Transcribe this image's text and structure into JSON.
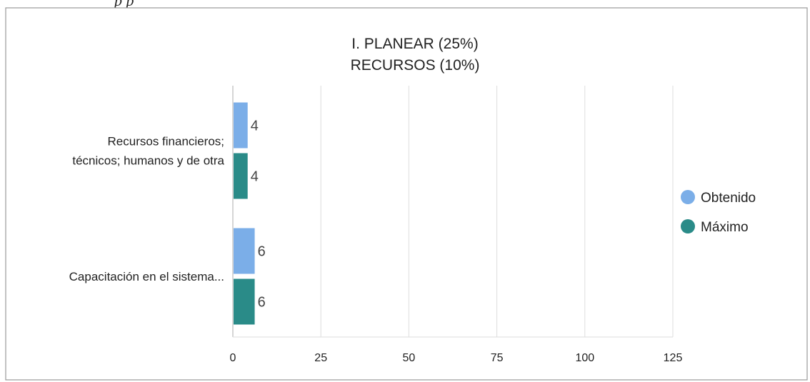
{
  "page": {
    "cropped_caption": "p                    p"
  },
  "chart_data": {
    "type": "bar",
    "orientation": "horizontal",
    "title_lines": [
      "I. PLANEAR (25%)",
      "RECURSOS (10%)"
    ],
    "categories": [
      [
        "Recursos financieros;",
        "técnicos;  humanos y de otra"
      ],
      [
        "Capacitación en el sistema..."
      ]
    ],
    "series": [
      {
        "name": "Obtenido",
        "values": [
          4,
          6
        ],
        "color": "#7baee8"
      },
      {
        "name": "Máximo",
        "values": [
          4,
          6
        ],
        "color": "#2a8b88"
      }
    ],
    "x_ticks": [
      0,
      25,
      50,
      75,
      100,
      125
    ],
    "xlim": [
      0,
      125
    ],
    "grid": true,
    "legend_position": "right"
  }
}
